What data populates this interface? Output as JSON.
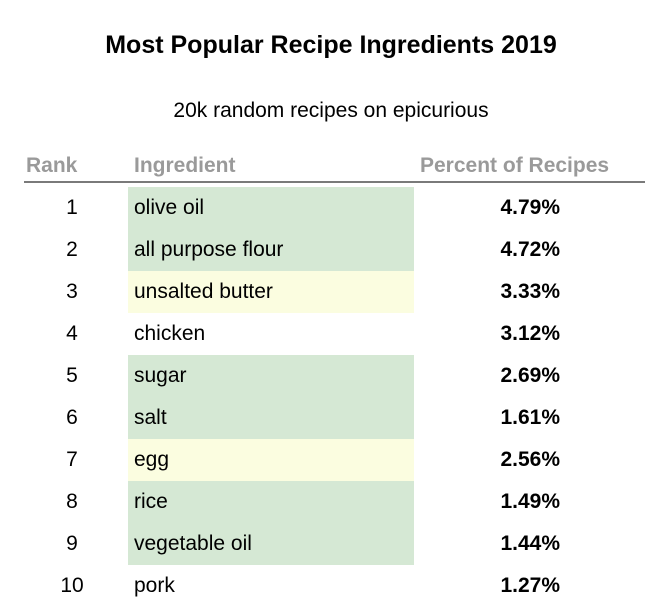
{
  "title": "Most Popular Recipe Ingredients 2019",
  "subtitle": "20k random recipes on epicurious",
  "headers": {
    "rank": "Rank",
    "ingredient": "Ingredient",
    "percent": "Percent of Recipes"
  },
  "colors": {
    "green": "#d5e8d4",
    "yellow": "#fbfde0",
    "none": "#ffffff",
    "header_text": "#9a9a9a",
    "rule": "#7a7a7a"
  },
  "chart_data": {
    "type": "table",
    "title": "Most Popular Recipe Ingredients 2019",
    "subtitle": "20k random recipes on epicurious",
    "columns": [
      "Rank",
      "Ingredient",
      "Percent of Recipes"
    ],
    "rows": [
      {
        "rank": "1",
        "ingredient": "olive oil",
        "percent": "4.79%",
        "value": 4.79,
        "highlight": "green"
      },
      {
        "rank": "2",
        "ingredient": "all purpose flour",
        "percent": "4.72%",
        "value": 4.72,
        "highlight": "green"
      },
      {
        "rank": "3",
        "ingredient": "unsalted butter",
        "percent": "3.33%",
        "value": 3.33,
        "highlight": "yellow"
      },
      {
        "rank": "4",
        "ingredient": "chicken",
        "percent": "3.12%",
        "value": 3.12,
        "highlight": "none"
      },
      {
        "rank": "5",
        "ingredient": "sugar",
        "percent": "2.69%",
        "value": 2.69,
        "highlight": "green"
      },
      {
        "rank": "6",
        "ingredient": "salt",
        "percent": "1.61%",
        "value": 1.61,
        "highlight": "green"
      },
      {
        "rank": "7",
        "ingredient": "egg",
        "percent": "2.56%",
        "value": 2.56,
        "highlight": "yellow"
      },
      {
        "rank": "8",
        "ingredient": "rice",
        "percent": "1.49%",
        "value": 1.49,
        "highlight": "green"
      },
      {
        "rank": "9",
        "ingredient": "vegetable oil",
        "percent": "1.44%",
        "value": 1.44,
        "highlight": "green"
      },
      {
        "rank": "10",
        "ingredient": "pork",
        "percent": "1.27%",
        "value": 1.27,
        "highlight": "none"
      }
    ]
  }
}
